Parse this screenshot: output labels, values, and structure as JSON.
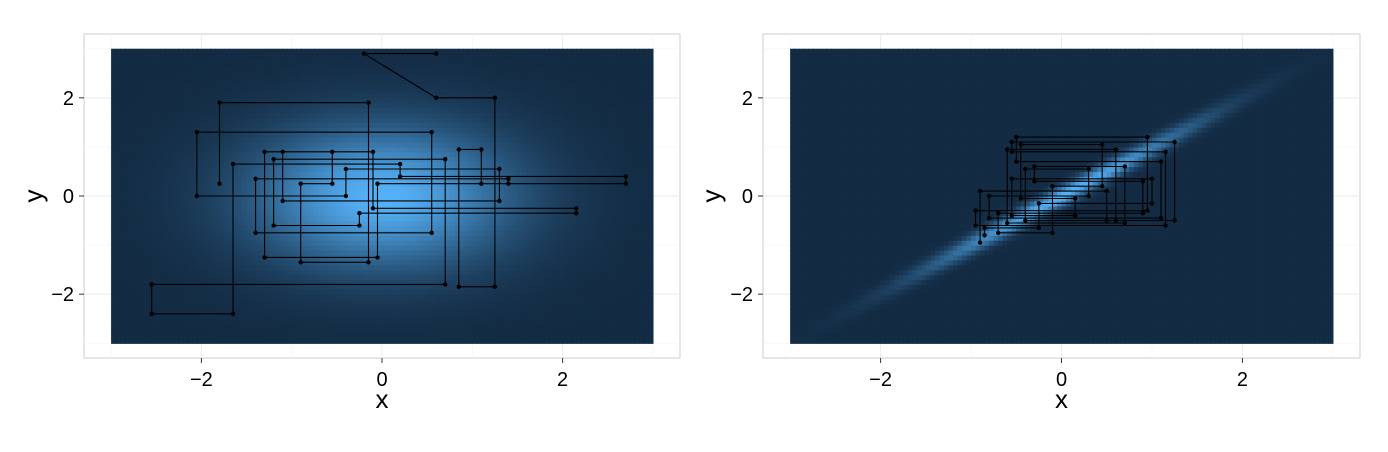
{
  "chart_data": [
    {
      "type": "line",
      "xlabel": "x",
      "ylabel": "y",
      "xlim": [
        -3.3,
        3.3
      ],
      "ylim": [
        -3.3,
        3.3
      ],
      "x_ticks": [
        -2,
        0,
        2
      ],
      "y_ticks": [
        -2,
        0,
        2
      ],
      "x_tick_labels": [
        "−2",
        "0",
        "2"
      ],
      "y_tick_labels": [
        "−2",
        "0",
        "2"
      ],
      "grid": true,
      "background": "heatmap",
      "heatmap_range": [
        -3,
        3
      ],
      "density": {
        "correlation": 0.0,
        "sx": 1.0,
        "sy": 1.0
      },
      "colors": {
        "low": "#132b43",
        "high": "#56b1f7",
        "path": "#000000"
      },
      "points": [
        [
          0.6,
          2.9
        ],
        [
          -0.2,
          2.9
        ],
        [
          0.6,
          2.0
        ],
        [
          1.25,
          2.0
        ],
        [
          1.25,
          -1.85
        ],
        [
          0.85,
          -1.85
        ],
        [
          0.85,
          0.95
        ],
        [
          1.1,
          0.95
        ],
        [
          1.1,
          0.25
        ],
        [
          1.4,
          0.25
        ],
        [
          1.4,
          0.35
        ],
        [
          -1.4,
          0.35
        ],
        [
          -1.4,
          -0.75
        ],
        [
          0.55,
          -0.75
        ],
        [
          0.55,
          1.3
        ],
        [
          -2.05,
          1.3
        ],
        [
          -2.05,
          0.0
        ],
        [
          -0.4,
          0.0
        ],
        [
          -0.4,
          0.55
        ],
        [
          1.3,
          0.55
        ],
        [
          1.3,
          -0.1
        ],
        [
          -1.1,
          -0.1
        ],
        [
          -1.1,
          0.9
        ],
        [
          -0.1,
          0.9
        ],
        [
          -0.1,
          -0.25
        ],
        [
          2.15,
          -0.25
        ],
        [
          2.15,
          -0.35
        ],
        [
          -0.25,
          -0.35
        ],
        [
          -0.25,
          -0.6
        ],
        [
          -1.2,
          -0.6
        ],
        [
          -1.2,
          0.75
        ],
        [
          0.7,
          0.75
        ],
        [
          0.7,
          -1.8
        ],
        [
          -2.55,
          -1.8
        ],
        [
          -2.55,
          -2.4
        ],
        [
          -1.65,
          -2.4
        ],
        [
          -1.65,
          0.65
        ],
        [
          0.2,
          0.65
        ],
        [
          0.2,
          0.4
        ],
        [
          2.7,
          0.4
        ],
        [
          2.7,
          0.25
        ],
        [
          -0.05,
          0.25
        ],
        [
          -0.05,
          -1.25
        ],
        [
          -1.3,
          -1.25
        ],
        [
          -1.3,
          0.9
        ],
        [
          -0.55,
          0.9
        ],
        [
          -0.55,
          0.25
        ],
        [
          -0.9,
          0.25
        ],
        [
          -0.9,
          -1.35
        ],
        [
          -0.15,
          -1.35
        ],
        [
          -0.15,
          1.9
        ],
        [
          -1.8,
          1.9
        ],
        [
          -1.8,
          0.25
        ]
      ]
    },
    {
      "type": "line",
      "xlabel": "x",
      "ylabel": "y",
      "xlim": [
        -3.3,
        3.3
      ],
      "ylim": [
        -3.3,
        3.3
      ],
      "x_ticks": [
        -2,
        0,
        2
      ],
      "y_ticks": [
        -2,
        0,
        2
      ],
      "x_tick_labels": [
        "−2",
        "0",
        "2"
      ],
      "y_tick_labels": [
        "−2",
        "0",
        "2"
      ],
      "grid": true,
      "background": "heatmap",
      "heatmap_range": [
        -3,
        3
      ],
      "density": {
        "correlation": 0.99,
        "sx": 1.0,
        "sy": 1.0
      },
      "colors": {
        "low": "#132b43",
        "high": "#56b1f7",
        "path": "#000000"
      },
      "points": [
        [
          -0.9,
          -0.95
        ],
        [
          -0.9,
          0.1
        ],
        [
          0.5,
          0.1
        ],
        [
          0.5,
          -0.5
        ],
        [
          1.25,
          -0.5
        ],
        [
          1.25,
          1.1
        ],
        [
          -0.55,
          1.1
        ],
        [
          -0.55,
          0.9
        ],
        [
          1.15,
          0.9
        ],
        [
          1.15,
          -0.6
        ],
        [
          -0.95,
          -0.6
        ],
        [
          -0.95,
          -0.3
        ],
        [
          0.95,
          -0.3
        ],
        [
          0.95,
          1.2
        ],
        [
          -0.5,
          1.2
        ],
        [
          -0.5,
          0.7
        ],
        [
          1.1,
          0.7
        ],
        [
          1.1,
          -0.45
        ],
        [
          -0.8,
          -0.45
        ],
        [
          -0.8,
          0.0
        ],
        [
          0.3,
          0.0
        ],
        [
          0.3,
          0.55
        ],
        [
          -0.4,
          0.55
        ],
        [
          -0.4,
          -0.5
        ],
        [
          0.6,
          -0.5
        ],
        [
          0.6,
          0.95
        ],
        [
          -0.6,
          0.95
        ],
        [
          -0.6,
          -0.55
        ],
        [
          0.7,
          -0.55
        ],
        [
          0.7,
          0.6
        ],
        [
          -0.3,
          0.6
        ],
        [
          -0.3,
          0.3
        ],
        [
          0.9,
          0.3
        ],
        [
          0.9,
          -0.35
        ],
        [
          -0.7,
          -0.35
        ],
        [
          -0.7,
          -0.75
        ],
        [
          -0.1,
          -0.75
        ],
        [
          -0.1,
          0.2
        ],
        [
          0.45,
          0.2
        ],
        [
          0.45,
          1.05
        ],
        [
          -0.45,
          1.05
        ],
        [
          -0.45,
          -0.05
        ],
        [
          0.15,
          -0.05
        ],
        [
          0.15,
          -0.4
        ],
        [
          -0.55,
          -0.4
        ],
        [
          -0.55,
          0.35
        ],
        [
          1.0,
          0.35
        ],
        [
          1.0,
          -0.15
        ],
        [
          -0.25,
          -0.15
        ],
        [
          -0.25,
          -0.65
        ],
        [
          -0.85,
          -0.65
        ],
        [
          -0.85,
          -0.8
        ]
      ]
    }
  ]
}
